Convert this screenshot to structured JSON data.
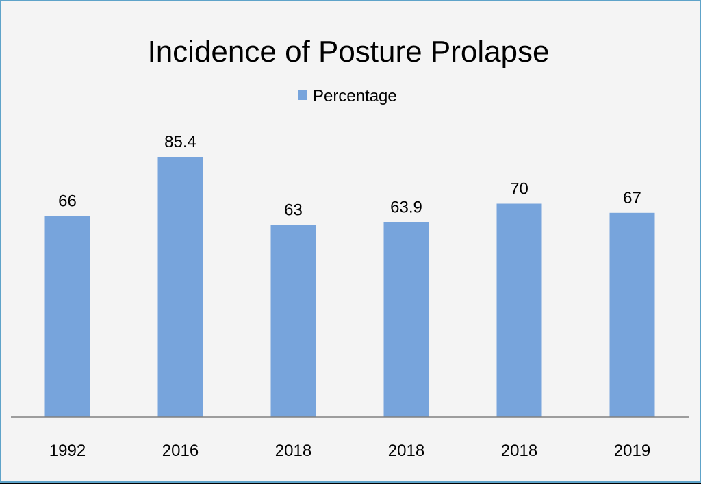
{
  "chart_data": {
    "type": "bar",
    "title": "Incidence of Posture Prolapse",
    "categories": [
      "1992",
      "2016",
      "2018",
      "2018",
      "2018",
      "2019"
    ],
    "series": [
      {
        "name": "Percentage",
        "values": [
          66,
          85.4,
          63,
          63.9,
          70,
          67
        ]
      }
    ],
    "data_labels": [
      "66",
      "85.4",
      "63",
      "63.9",
      "70",
      "67"
    ],
    "ylim": [
      0,
      100
    ],
    "grid": false,
    "legend_position": "top",
    "colors": {
      "bar": "#77a4dc",
      "axis": "#808080",
      "border": "#5ea3c9",
      "background": "#f4f4f4"
    }
  }
}
